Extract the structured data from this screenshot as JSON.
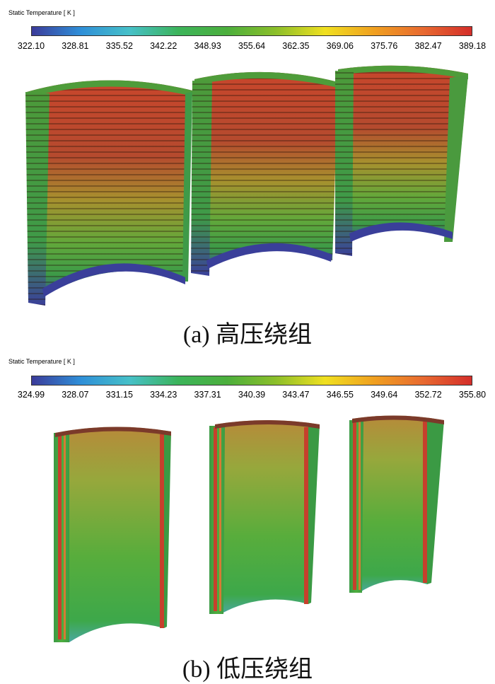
{
  "panel_a": {
    "legend_title": "Static Temperature [ K ]",
    "ticks": [
      "322.10",
      "328.81",
      "335.52",
      "342.22",
      "348.93",
      "355.64",
      "362.35",
      "369.06",
      "375.76",
      "382.47",
      "389.18"
    ],
    "caption": "(a)  高压绕组"
  },
  "panel_b": {
    "legend_title": "Static Temperature [ K ]",
    "ticks": [
      "324.99",
      "328.07",
      "331.15",
      "334.23",
      "337.31",
      "340.39",
      "343.47",
      "346.55",
      "349.64",
      "352.72",
      "355.80"
    ],
    "caption": "(b)  低压绕组"
  },
  "colormap": [
    "#3b3b9a",
    "#2f8fd8",
    "#46c0c8",
    "#3cb45a",
    "#4caf3c",
    "#8cbf2a",
    "#f0e020",
    "#f0a020",
    "#e86a30",
    "#d42e2a"
  ]
}
